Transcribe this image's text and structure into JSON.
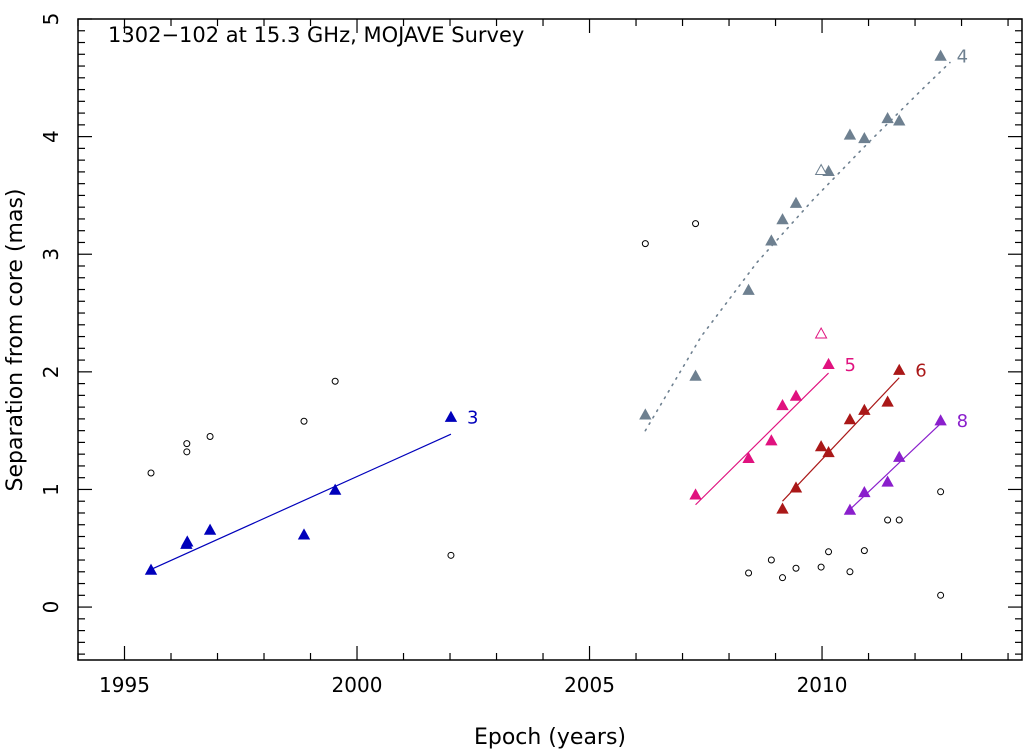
{
  "chart_data": {
    "type": "scatter",
    "title": "1302−102 at 15.3 GHz, MOJAVE Survey",
    "xlabel": "Epoch (years)",
    "ylabel": "Separation from core (mas)",
    "xlim": [
      1994,
      2014.3
    ],
    "ylim": [
      -0.45,
      5
    ],
    "xticks": [
      1995,
      2000,
      2005,
      2010
    ],
    "yticks": [
      0,
      1,
      2,
      3,
      4,
      5
    ],
    "grid": false,
    "legend": "none",
    "unassigned_points": {
      "name": "",
      "color": "#000000",
      "marker": "open-circle",
      "x": [
        1995.57,
        1996.34,
        1996.34,
        1996.84,
        1998.86,
        1999.53,
        2002.02,
        2006.2,
        2007.28,
        2008.42,
        2008.91,
        2009.15,
        2009.44,
        2009.98,
        2010.14,
        2010.6,
        2010.91,
        2011.41,
        2011.66,
        2012.55,
        2012.55
      ],
      "y": [
        1.14,
        1.32,
        1.39,
        1.45,
        1.58,
        1.92,
        0.44,
        3.09,
        3.26,
        0.29,
        0.4,
        0.25,
        0.33,
        0.34,
        0.47,
        0.3,
        0.48,
        0.74,
        0.74,
        0.98,
        0.1
      ]
    },
    "series": [
      {
        "name": "3",
        "color": "#0000bb",
        "marker": "filled-triangle",
        "x": [
          1995.57,
          1996.33,
          1996.35,
          1996.84,
          1998.86,
          1999.53,
          2002.02
        ],
        "y": [
          0.31,
          0.53,
          0.55,
          0.65,
          0.61,
          0.99,
          1.61
        ],
        "fit": {
          "style": "solid",
          "x": [
            1995.57,
            2002.02
          ],
          "y": [
            0.32,
            1.47
          ]
        }
      },
      {
        "name": "4",
        "color": "#6e8090",
        "marker": "filled-triangle",
        "x": [
          2006.2,
          2007.28,
          2008.42,
          2008.91,
          2009.15,
          2009.44,
          2010.14,
          2010.6,
          2010.91,
          2011.41,
          2011.66,
          2012.55
        ],
        "y": [
          1.63,
          1.96,
          2.69,
          3.11,
          3.29,
          3.43,
          3.7,
          4.01,
          3.98,
          4.15,
          4.13,
          4.68
        ],
        "open_points": {
          "x": [
            2009.98
          ],
          "y": [
            3.71
          ]
        },
        "fit": {
          "style": "dotted",
          "x": [
            2006.2,
            2007.4,
            2008.6,
            2009.8,
            2011.0,
            2012.2,
            2012.75
          ],
          "y": [
            1.5,
            2.3,
            2.93,
            3.46,
            3.95,
            4.42,
            4.63
          ]
        }
      },
      {
        "name": "5",
        "color": "#e0127f",
        "marker": "filled-triangle",
        "x": [
          2007.28,
          2008.42,
          2008.91,
          2009.15,
          2009.44,
          2010.14
        ],
        "y": [
          0.95,
          1.26,
          1.41,
          1.71,
          1.79,
          2.06
        ],
        "open_points": {
          "x": [
            2009.98
          ],
          "y": [
            2.32
          ]
        },
        "fit": {
          "style": "solid",
          "x": [
            2007.28,
            2010.14
          ],
          "y": [
            0.87,
            1.99
          ]
        }
      },
      {
        "name": "6",
        "color": "#aa1818",
        "marker": "filled-triangle",
        "x": [
          2009.15,
          2009.44,
          2009.98,
          2010.14,
          2010.6,
          2010.91,
          2011.41,
          2011.66
        ],
        "y": [
          0.83,
          1.01,
          1.36,
          1.31,
          1.59,
          1.67,
          1.74,
          2.01
        ],
        "fit": {
          "style": "solid",
          "x": [
            2009.15,
            2011.66
          ],
          "y": [
            0.9,
            1.95
          ]
        }
      },
      {
        "name": "8",
        "color": "#8a1fcc",
        "marker": "filled-triangle",
        "x": [
          2010.6,
          2010.91,
          2011.41,
          2011.66,
          2012.55
        ],
        "y": [
          0.82,
          0.97,
          1.06,
          1.27,
          1.58
        ],
        "fit": {
          "style": "solid",
          "x": [
            2010.6,
            2012.55
          ],
          "y": [
            0.83,
            1.56
          ]
        }
      }
    ]
  }
}
